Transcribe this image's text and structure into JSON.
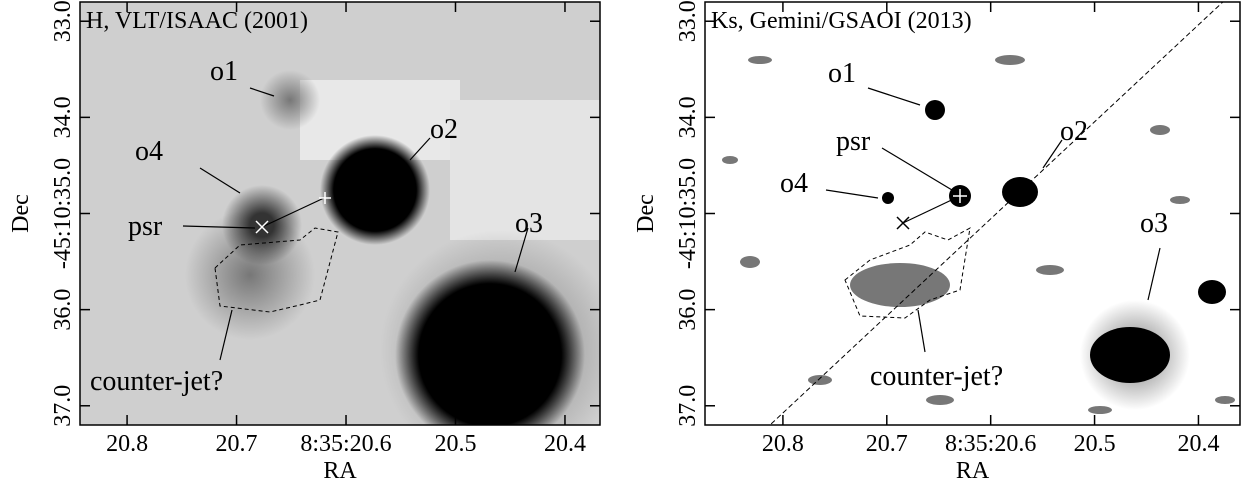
{
  "chart_data": [
    {
      "type": "image",
      "title": "H, VLT/ISAAC (2001)",
      "xlabel": "RA",
      "ylabel": "Dec",
      "xlim": [
        20.843,
        20.368
      ],
      "xticks": [
        20.8,
        20.7,
        {
          "value": 20.6,
          "label": "8:35:20.6"
        },
        20.5,
        20.4
      ],
      "ylim": [
        32.8,
        37.2
      ],
      "yticks": [
        {
          "value": 33,
          "label": "33.0"
        },
        {
          "value": 34,
          "label": "34.0"
        },
        {
          "value": 35,
          "label": "-45:10:35.0"
        },
        {
          "value": 36,
          "label": "36.0"
        },
        {
          "value": 37,
          "label": "37.0"
        }
      ],
      "annotations": [
        "o1",
        "o2",
        "o4",
        "psr",
        "o3",
        "counter-jet?"
      ]
    },
    {
      "type": "image",
      "title": "Ks, Gemini/GSAOI (2013)",
      "xlabel": "RA",
      "ylabel": "Dec",
      "xlim": [
        20.875,
        20.36
      ],
      "xticks": [
        20.8,
        20.7,
        {
          "value": 20.6,
          "label": "8:35:20.6"
        },
        20.5,
        20.4
      ],
      "ylim": [
        32.8,
        37.2
      ],
      "yticks": [
        {
          "value": 33,
          "label": "33.0"
        },
        {
          "value": 34,
          "label": "34.0"
        },
        {
          "value": 35,
          "label": "-45:10:35.0"
        },
        {
          "value": 36,
          "label": "36.0"
        },
        {
          "value": 37,
          "label": "37.0"
        }
      ],
      "annotations": [
        "o1",
        "o2",
        "psr",
        "o4",
        "o3",
        "counter-jet?"
      ]
    }
  ]
}
